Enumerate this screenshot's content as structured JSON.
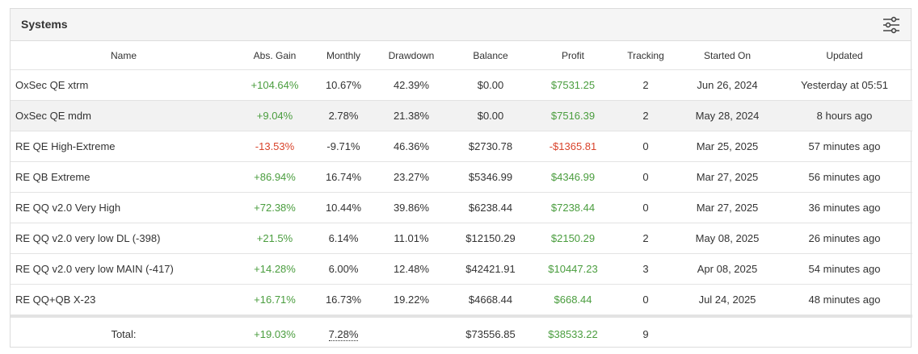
{
  "panel": {
    "title": "Systems",
    "filter_icon": "sliders-icon"
  },
  "columns": [
    "Name",
    "Abs. Gain",
    "Monthly",
    "Drawdown",
    "Balance",
    "Profit",
    "Tracking",
    "Started On",
    "Updated"
  ],
  "rows": [
    {
      "name": "OxSec QE xtrm",
      "gain": "+104.64%",
      "monthly": "10.67%",
      "drawdown": "42.39%",
      "balance": "$0.00",
      "profit": "$7531.25",
      "tracking": "2",
      "started": "Jun 26, 2024",
      "updated": "Yesterday at 05:51",
      "gain_sign": "pos",
      "profit_sign": "pos"
    },
    {
      "name": "OxSec QE mdm",
      "gain": "+9.04%",
      "monthly": "2.78%",
      "drawdown": "21.38%",
      "balance": "$0.00",
      "profit": "$7516.39",
      "tracking": "2",
      "started": "May 28, 2024",
      "updated": "8 hours ago",
      "gain_sign": "pos",
      "profit_sign": "pos"
    },
    {
      "name": "RE QE High-Extreme",
      "gain": "-13.53%",
      "monthly": "-9.71%",
      "drawdown": "46.36%",
      "balance": "$2730.78",
      "profit": "-$1365.81",
      "tracking": "0",
      "started": "Mar 25, 2025",
      "updated": "57 minutes ago",
      "gain_sign": "neg",
      "profit_sign": "neg"
    },
    {
      "name": "RE QB Extreme",
      "gain": "+86.94%",
      "monthly": "16.74%",
      "drawdown": "23.27%",
      "balance": "$5346.99",
      "profit": "$4346.99",
      "tracking": "0",
      "started": "Mar 27, 2025",
      "updated": "56 minutes ago",
      "gain_sign": "pos",
      "profit_sign": "pos"
    },
    {
      "name": "RE QQ v2.0 Very High",
      "gain": "+72.38%",
      "monthly": "10.44%",
      "drawdown": "39.86%",
      "balance": "$6238.44",
      "profit": "$7238.44",
      "tracking": "0",
      "started": "Mar 27, 2025",
      "updated": "36 minutes ago",
      "gain_sign": "pos",
      "profit_sign": "pos"
    },
    {
      "name": "RE QQ v2.0 very low DL (-398)",
      "gain": "+21.5%",
      "monthly": "6.14%",
      "drawdown": "11.01%",
      "balance": "$12150.29",
      "profit": "$2150.29",
      "tracking": "2",
      "started": "May 08, 2025",
      "updated": "26 minutes ago",
      "gain_sign": "pos",
      "profit_sign": "pos"
    },
    {
      "name": "RE QQ v2.0 very low MAIN (-417)",
      "gain": "+14.28%",
      "monthly": "6.00%",
      "drawdown": "12.48%",
      "balance": "$42421.91",
      "profit": "$10447.23",
      "tracking": "3",
      "started": "Apr 08, 2025",
      "updated": "54 minutes ago",
      "gain_sign": "pos",
      "profit_sign": "pos"
    },
    {
      "name": "RE QQ+QB X-23",
      "gain": "+16.71%",
      "monthly": "16.73%",
      "drawdown": "19.22%",
      "balance": "$4668.44",
      "profit": "$668.44",
      "tracking": "0",
      "started": "Jul 24, 2025",
      "updated": "48 minutes ago",
      "gain_sign": "pos",
      "profit_sign": "pos"
    }
  ],
  "total": {
    "label": "Total:",
    "gain": "+19.03%",
    "monthly": "7.28%",
    "balance": "$73556.85",
    "profit": "$38533.22",
    "tracking": "9"
  },
  "colors": {
    "positive": "#4a9d3e",
    "negative": "#d9432b",
    "header_bg": "#f5f5f5",
    "alt_row_bg": "#f2f2f2"
  }
}
